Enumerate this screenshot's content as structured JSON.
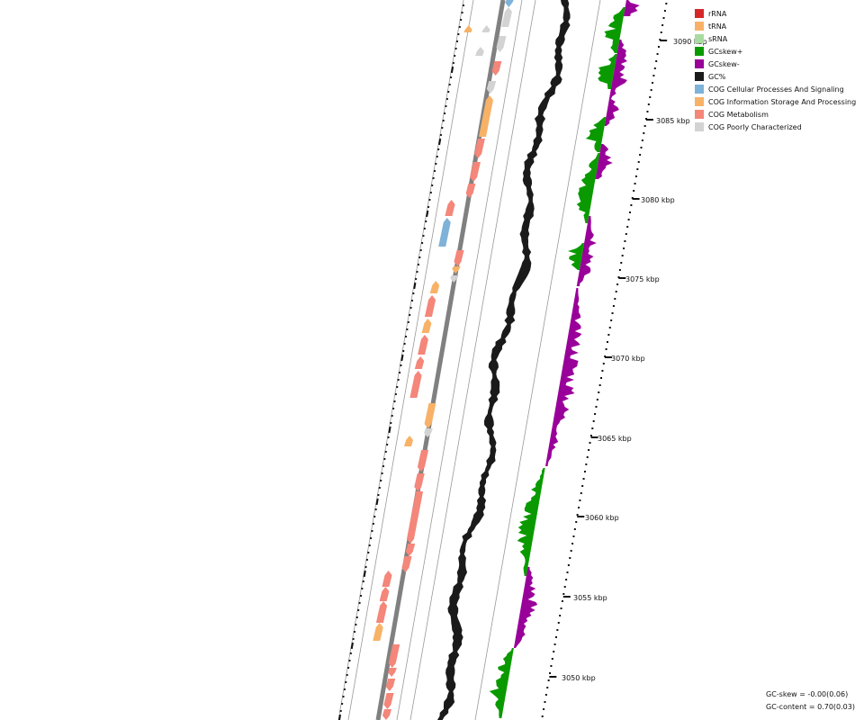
{
  "legend": [
    {
      "label": "rRNA",
      "color": "#d62728"
    },
    {
      "label": "tRNA",
      "color": "#f7b267"
    },
    {
      "label": "sRNA",
      "color": "#a8dca0"
    },
    {
      "label": "GCskew+",
      "color": "#0a9a00"
    },
    {
      "label": "GCskew-",
      "color": "#990099"
    },
    {
      "label": "GC%",
      "color": "#1a1a1a"
    },
    {
      "label": "COG Cellular Processes And Signaling",
      "color": "#7fb2d8"
    },
    {
      "label": "COG Information Storage And Processing",
      "color": "#f7b267"
    },
    {
      "label": "COG Metabolism",
      "color": "#f4867a"
    },
    {
      "label": "COG Poorly Characterized",
      "color": "#d3d3d3"
    }
  ],
  "axis_labels": [
    "3050 kbp",
    "3055 kbp",
    "3060 kbp",
    "3065 kbp",
    "3070 kbp",
    "3075 kbp",
    "3080 kbp",
    "3085 kbp",
    "3090 kbp"
  ],
  "stats": {
    "gc_skew": "GC-skew = -0.00(0.06)",
    "gc_content": "GC-content = 0.70(0.03)"
  }
}
